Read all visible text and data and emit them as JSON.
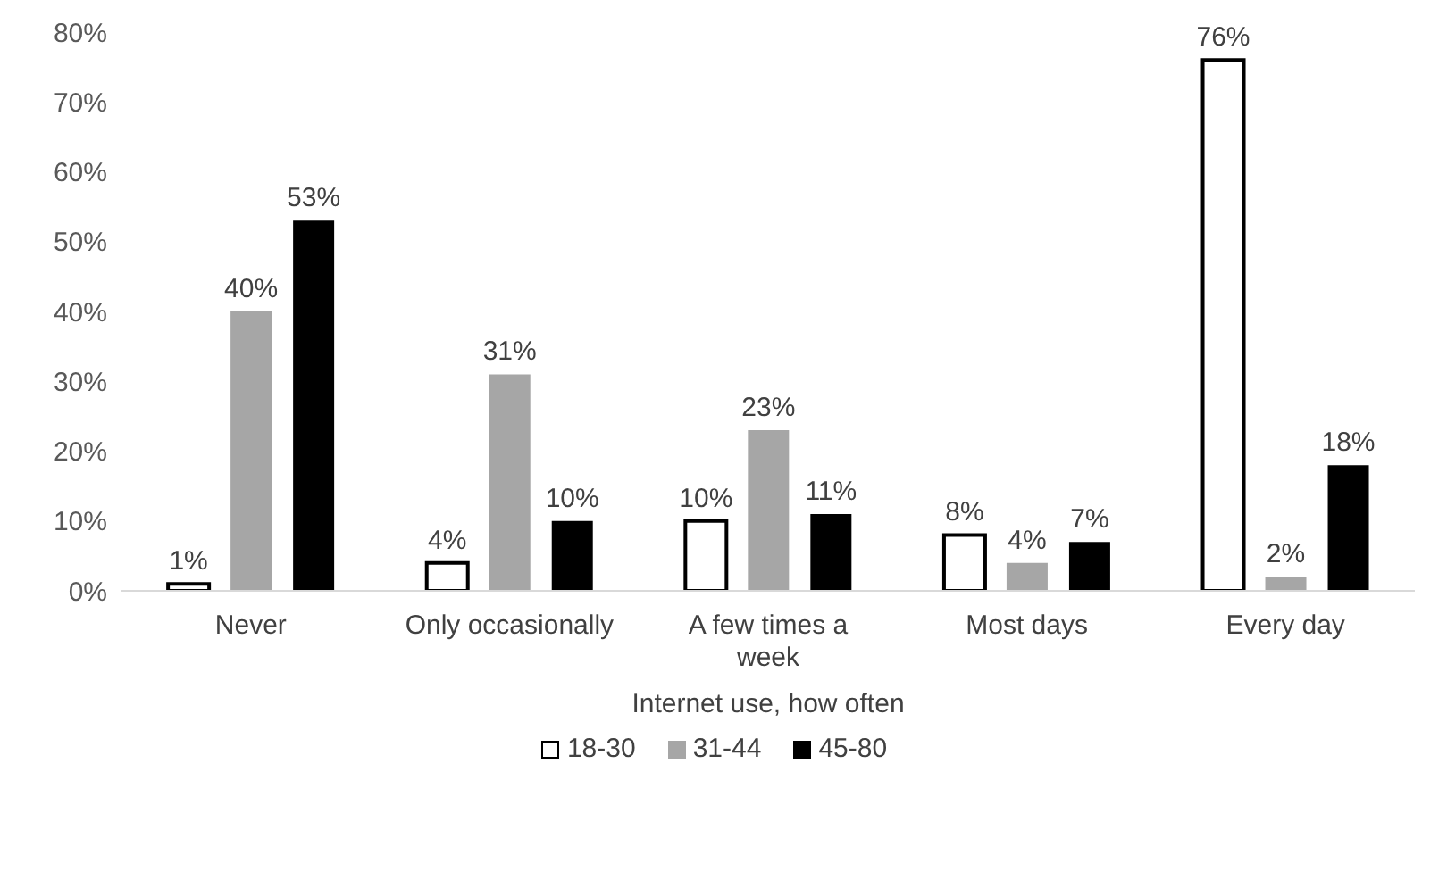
{
  "chart_data": {
    "type": "bar",
    "xlabel": "Internet use, how often",
    "categories": [
      "Never",
      "Only occasionally",
      "A few times a week",
      "Most days",
      "Every day"
    ],
    "series": [
      {
        "name": "18-30",
        "color": "#ffffff",
        "values": [
          1,
          4,
          10,
          8,
          76
        ],
        "value_labels": [
          "1%",
          "4%",
          "10%",
          "8%",
          "76%"
        ]
      },
      {
        "name": "31-44",
        "color": "#a6a6a6",
        "values": [
          40,
          31,
          23,
          4,
          2
        ],
        "value_labels": [
          "40%",
          "31%",
          "23%",
          "4%",
          "2%"
        ]
      },
      {
        "name": "45-80",
        "color": "#000000",
        "values": [
          53,
          10,
          11,
          7,
          18
        ],
        "value_labels": [
          "53%",
          "10%",
          "11%",
          "7%",
          "18%"
        ]
      }
    ],
    "ylim": [
      0,
      80
    ],
    "yticks": [
      {
        "value": 0,
        "label": "0%"
      },
      {
        "value": 10,
        "label": "10%"
      },
      {
        "value": 20,
        "label": "20%"
      },
      {
        "value": 30,
        "label": "30%"
      },
      {
        "value": 40,
        "label": "40%"
      },
      {
        "value": 50,
        "label": "50%"
      },
      {
        "value": 60,
        "label": "60%"
      },
      {
        "value": 70,
        "label": "70%"
      },
      {
        "value": 80,
        "label": "80%"
      }
    ],
    "grid": false,
    "legend": "bottom"
  }
}
